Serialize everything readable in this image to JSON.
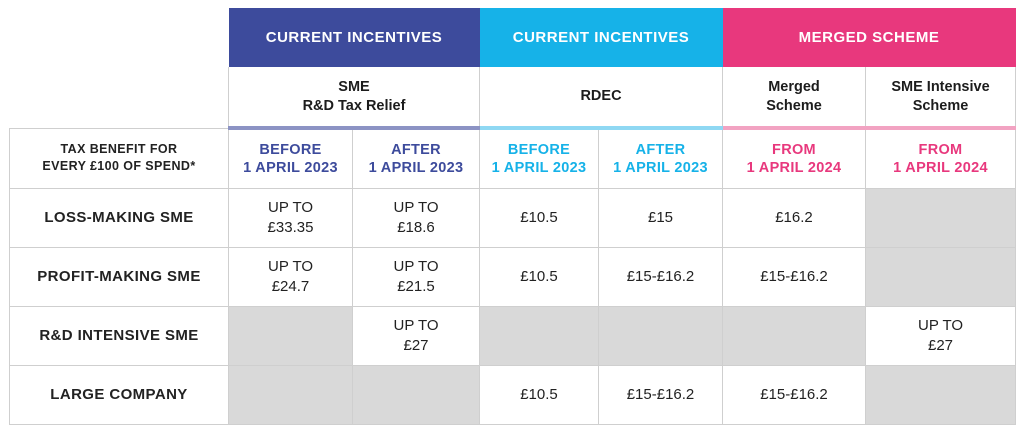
{
  "groups": {
    "current_incentives_1": "CURRENT INCENTIVES",
    "current_incentives_2": "CURRENT INCENTIVES",
    "merged_scheme": "MERGED SCHEME"
  },
  "schemes": {
    "sme_rd_line1": "SME",
    "sme_rd_line2": "R&D Tax Relief",
    "rdec": "RDEC",
    "merged_line1": "Merged",
    "merged_line2": "Scheme",
    "sme_intensive_line1": "SME Intensive",
    "sme_intensive_line2": "Scheme"
  },
  "row_header": {
    "line1": "TAX BENEFIT FOR",
    "line2": "EVERY £100 OF SPEND*"
  },
  "periods": [
    {
      "line1": "BEFORE",
      "line2": "1 APRIL 2023"
    },
    {
      "line1": "AFTER",
      "line2": "1 APRIL 2023"
    },
    {
      "line1": "BEFORE",
      "line2": "1 APRIL 2023"
    },
    {
      "line1": "AFTER",
      "line2": "1 APRIL 2023"
    },
    {
      "line1": "FROM",
      "line2": "1 APRIL 2024"
    },
    {
      "line1": "FROM",
      "line2": "1 APRIL 2024"
    }
  ],
  "rows": [
    {
      "label": "LOSS-MAKING SME",
      "cells": [
        {
          "l1": "UP TO",
          "l2": "£33.35"
        },
        {
          "l1": "UP TO",
          "l2": "£18.6"
        },
        {
          "l1": "£10.5",
          "l2": ""
        },
        {
          "l1": "£15",
          "l2": ""
        },
        {
          "l1": "£16.2",
          "l2": ""
        },
        {
          "l1": "",
          "l2": ""
        }
      ]
    },
    {
      "label": "PROFIT-MAKING SME",
      "cells": [
        {
          "l1": "UP TO",
          "l2": "£24.7"
        },
        {
          "l1": "UP TO",
          "l2": "£21.5"
        },
        {
          "l1": "£10.5",
          "l2": ""
        },
        {
          "l1": "£15-£16.2",
          "l2": ""
        },
        {
          "l1": "£15-£16.2",
          "l2": ""
        },
        {
          "l1": "",
          "l2": ""
        }
      ]
    },
    {
      "label": "R&D INTENSIVE SME",
      "cells": [
        {
          "l1": "",
          "l2": ""
        },
        {
          "l1": "UP TO",
          "l2": "£27"
        },
        {
          "l1": "",
          "l2": ""
        },
        {
          "l1": "",
          "l2": ""
        },
        {
          "l1": "",
          "l2": ""
        },
        {
          "l1": "UP TO",
          "l2": "£27"
        }
      ]
    },
    {
      "label": "LARGE COMPANY",
      "cells": [
        {
          "l1": "",
          "l2": ""
        },
        {
          "l1": "",
          "l2": ""
        },
        {
          "l1": "£10.5",
          "l2": ""
        },
        {
          "l1": "£15-£16.2",
          "l2": ""
        },
        {
          "l1": "£15-£16.2",
          "l2": ""
        },
        {
          "l1": "",
          "l2": ""
        }
      ]
    }
  ],
  "colors": {
    "current_incentives_1": "#3d4b9c",
    "current_incentives_2": "#16b2e8",
    "merged_scheme": "#e8387d",
    "not_applicable_fill": "#d9d9d9"
  }
}
